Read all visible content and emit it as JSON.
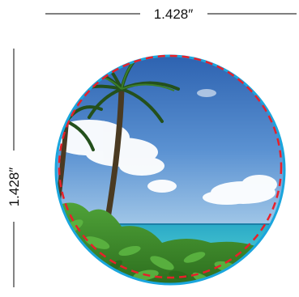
{
  "dimensions": {
    "width_label": "1.428″",
    "height_label": "1.428″"
  },
  "colors": {
    "circle_border": "#1aa6dd",
    "cut_line": "#e8202a",
    "dimension_line": "#333333",
    "sky_top": "#2f6fbf",
    "sky_bottom": "#8fbde6",
    "sea": "#35c3c8",
    "foliage": "#3f8f2a"
  }
}
